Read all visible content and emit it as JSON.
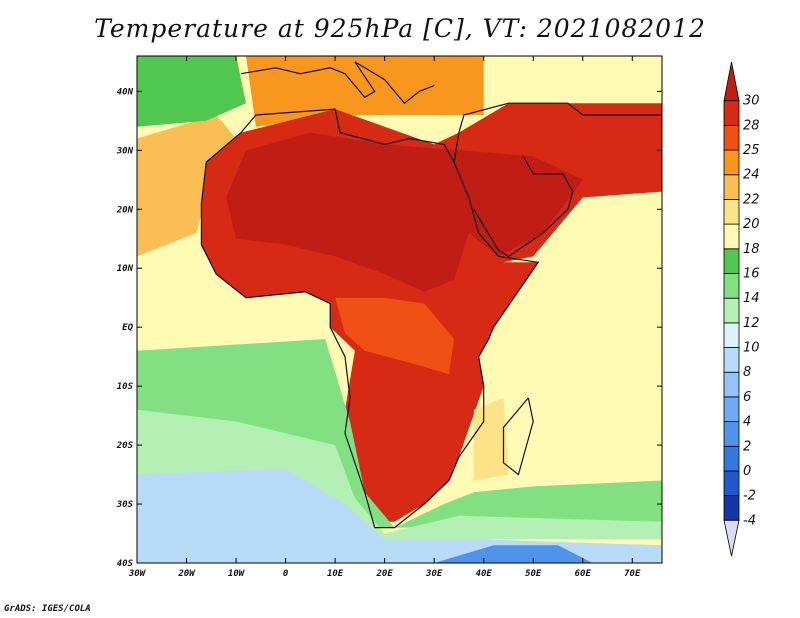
{
  "chart_data": {
    "type": "heatmap",
    "title": "Temperature at 925hPa [C], VT: 2021082012",
    "variable": "Temperature at 925hPa",
    "units": "C",
    "valid_time": "2021082012",
    "xlim": [
      -30,
      76
    ],
    "ylim": [
      -40,
      46
    ],
    "x_ticks": [
      {
        "value": -30,
        "label": "30W"
      },
      {
        "value": -20,
        "label": "20W"
      },
      {
        "value": -10,
        "label": "10W"
      },
      {
        "value": 0,
        "label": "0"
      },
      {
        "value": 10,
        "label": "10E"
      },
      {
        "value": 20,
        "label": "20E"
      },
      {
        "value": 30,
        "label": "30E"
      },
      {
        "value": 40,
        "label": "40E"
      },
      {
        "value": 50,
        "label": "50E"
      },
      {
        "value": 60,
        "label": "60E"
      },
      {
        "value": 70,
        "label": "70E"
      }
    ],
    "y_ticks": [
      {
        "value": 40,
        "label": "40N"
      },
      {
        "value": 30,
        "label": "30N"
      },
      {
        "value": 20,
        "label": "20N"
      },
      {
        "value": 10,
        "label": "10N"
      },
      {
        "value": 0,
        "label": "EQ"
      },
      {
        "value": -10,
        "label": "10S"
      },
      {
        "value": -20,
        "label": "20S"
      },
      {
        "value": -30,
        "label": "30S"
      },
      {
        "value": -40,
        "label": "40S"
      }
    ],
    "colorbar": {
      "levels": [
        "-4",
        "-2",
        "0",
        "2",
        "4",
        "6",
        "8",
        "10",
        "12",
        "14",
        "16",
        "18",
        "20",
        "22",
        "24",
        "25",
        "28",
        "30"
      ],
      "colors": [
        "#101a80",
        "#1437a8",
        "#1e5acc",
        "#3278e0",
        "#4f93ea",
        "#6eabf2",
        "#92c3f6",
        "#b9dbfa",
        "#dcf3fb",
        "#b4f0b4",
        "#82e082",
        "#50c850",
        "#fffab4",
        "#fde287",
        "#fbbe55",
        "#f8961e",
        "#f05014",
        "#d62a14",
        "#c01e14"
      ]
    },
    "regions": [
      {
        "name": "ocean-background",
        "value": 19
      },
      {
        "name": "north-mediterranean",
        "value": 24
      },
      {
        "name": "north-atlantic-band",
        "value": 16
      },
      {
        "name": "subtropical-atlantic",
        "value": 22
      },
      {
        "name": "sahara-arabia",
        "value": 29
      },
      {
        "name": "sahara-core",
        "value": 31
      },
      {
        "name": "central-africa",
        "value": 25
      },
      {
        "name": "southern-interior",
        "value": 29
      },
      {
        "name": "mozambique-channel",
        "value": 20
      },
      {
        "name": "south-atlantic-green",
        "value": 15
      },
      {
        "name": "south-atlantic-pale",
        "value": 12
      },
      {
        "name": "southern-ocean-blue",
        "value": 8
      },
      {
        "name": "southern-ocean-deep",
        "value": 3
      }
    ]
  },
  "credit": "GrADS: IGES/COLA"
}
